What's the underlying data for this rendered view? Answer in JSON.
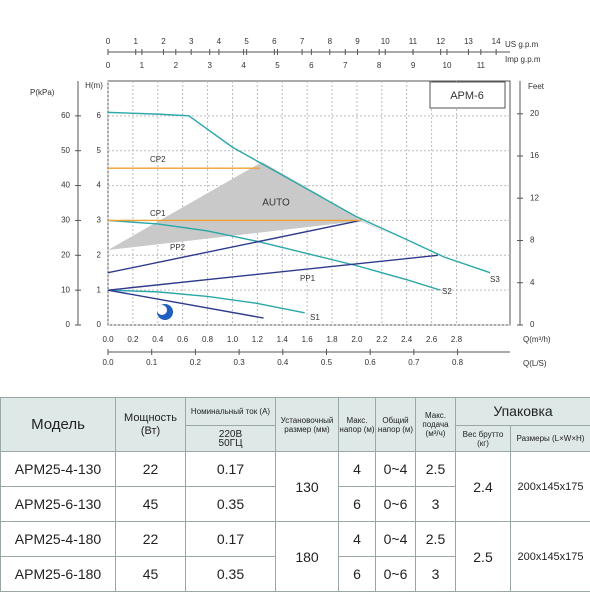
{
  "chart_data": {
    "type": "line",
    "title": "APM-6",
    "x_label": "Q(m³/h)",
    "y_label": "H(m)",
    "annotation": "AUTO",
    "xlim": [
      0,
      3.23
    ],
    "xticks": [
      {
        "value": 0,
        "label": "0.0"
      },
      0.2,
      0.4,
      0.6,
      0.8,
      {
        "value": 1,
        "label": "1.0"
      },
      1.2,
      1.4,
      1.6,
      1.8,
      {
        "value": 2,
        "label": "2.0"
      },
      2.2,
      2.4,
      2.6,
      2.8
    ],
    "ylim": [
      0,
      7
    ],
    "yticks": [
      0,
      1,
      2,
      3,
      4,
      5,
      6
    ],
    "grid": true,
    "kpa_axis": {
      "label": "P(kPa)",
      "lim": [
        0,
        70
      ],
      "ticks": [
        0,
        10,
        20,
        30,
        40,
        50,
        60
      ]
    },
    "feet_axis": {
      "label": "Feet",
      "lim": [
        0,
        23.1
      ],
      "ticks": [
        0,
        4,
        8,
        12,
        16,
        20
      ]
    },
    "us_axis": {
      "label": "US  g.p.m",
      "lim": [
        0,
        14.5
      ],
      "ticks": [
        0,
        1,
        2,
        3,
        4,
        5,
        6,
        7,
        8,
        9,
        10,
        11,
        12,
        13,
        14
      ]
    },
    "imp_axis": {
      "label": "Imp  g.p.m",
      "lim": [
        0,
        11.86
      ],
      "ticks": [
        0,
        1,
        2,
        3,
        4,
        5,
        6,
        7,
        8,
        9,
        10,
        11
      ]
    },
    "ls_axis": {
      "label": "Q(L/S)",
      "lim": [
        0,
        0.92
      ],
      "ticks": [
        {
          "value": 0,
          "label": "0.0"
        },
        0.1,
        0.2,
        0.3,
        0.4,
        0.5,
        0.6,
        0.7,
        0.8
      ]
    },
    "series": [
      {
        "name": "S3",
        "color": "#2aa7a8",
        "x": [
          0,
          0.4,
          0.65,
          1.0,
          1.3,
          1.6,
          2.0,
          2.4,
          2.7,
          3.07
        ],
        "values": [
          6.1,
          6.05,
          6.0,
          5.1,
          4.5,
          3.9,
          3.1,
          2.45,
          1.95,
          1.5
        ]
      },
      {
        "name": "S2",
        "color": "#2aa7a8",
        "x": [
          0,
          0.4,
          0.8,
          1.2,
          1.6,
          2.0,
          2.4,
          2.67
        ],
        "values": [
          3.0,
          2.9,
          2.7,
          2.4,
          2.05,
          1.7,
          1.3,
          1.0
        ]
      },
      {
        "name": "S1",
        "color": "#2aa7a8",
        "x": [
          0,
          0.4,
          0.8,
          1.2,
          1.58
        ],
        "values": [
          1.0,
          0.95,
          0.82,
          0.62,
          0.35
        ]
      },
      {
        "name": "PP2",
        "color": "#2e3a8c",
        "x": [
          0,
          2.03
        ],
        "values": [
          1.5,
          3.0
        ]
      },
      {
        "name": "PP1",
        "color": "#2e3a8c",
        "x": [
          0,
          2.65
        ],
        "values": [
          1.0,
          2.0
        ]
      },
      {
        "name": null,
        "color": "#2e3a8c",
        "x": [
          0,
          1.25
        ],
        "values": [
          1.0,
          0.2
        ]
      },
      {
        "name": "CP2",
        "color": "#f0a030",
        "x": [
          0,
          1.22
        ],
        "values": [
          4.5,
          4.5
        ]
      },
      {
        "name": "CP1",
        "color": "#f0a030",
        "x": [
          0,
          2.03
        ],
        "values": [
          3.0,
          3.0
        ]
      }
    ]
  },
  "table": {
    "headers": [
      "Модель",
      "Мощность (Вт)",
      "Номинальный ток (А)",
      "Установочный размер (мм)",
      "Макс. напор (м)",
      "Общий напор (м)",
      "Макс. подача (м³/ч)",
      "Упаковка"
    ],
    "subheaders": [
      "220В 50ГЦ",
      "Вес брутто (кг)",
      "Размеры (L×W×H)"
    ],
    "rows": [
      [
        "APM25-4-130",
        "22",
        "0.17",
        "4",
        "0~4",
        "2.5"
      ],
      [
        "APM25-6-130",
        "45",
        "0.35",
        "6",
        "0~6",
        "3"
      ],
      [
        "APM25-4-180",
        "22",
        "0.17",
        "4",
        "0~4",
        "2.5"
      ],
      [
        "APM25-6-180",
        "45",
        "0.35",
        "6",
        "0~6",
        "3"
      ]
    ],
    "groups": [
      {
        "size": "130",
        "weight": "2.4",
        "dims": "200x145x175"
      },
      {
        "size": "180",
        "weight": "2.5",
        "dims": "200x145x175"
      }
    ]
  }
}
